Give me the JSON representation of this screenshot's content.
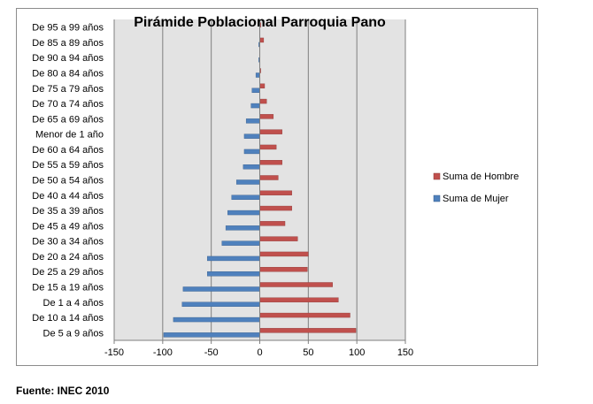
{
  "chart_data": {
    "type": "bar",
    "orientation": "horizontal",
    "title": "Pirámide Poblacional Parroquia Pano",
    "categories": [
      "De 95 a 99 años",
      "De 85 a 89 años",
      "De 90 a 94 años",
      "De 80 a 84 años",
      "De 75 a 79 años",
      "De 70 a 74 años",
      "De 65 a 69 años",
      "Menor de 1 año",
      "De 60 a 64 años",
      "De 55 a 59 años",
      "De 50 a 54 años",
      "De 40 a 44 años",
      "De 35 a 39 años",
      "De 45 a 49 años",
      "De 30 a 34 años",
      "De 20 a 24 años",
      "De 25 a 29 años",
      "De 15 a 19 años",
      "De 1 a 4 años",
      "De 10 a 14 años",
      "De 5 a 9 años"
    ],
    "series": [
      {
        "name": "Suma de Hombre",
        "color": "#c0504d",
        "values": [
          1,
          4,
          0,
          1,
          5,
          7,
          14,
          23,
          17,
          23,
          19,
          33,
          33,
          26,
          39,
          50,
          49,
          75,
          81,
          93,
          99
        ]
      },
      {
        "name": "Suma de Mujer",
        "color": "#4f81bd",
        "values": [
          0,
          -1,
          -1,
          -4,
          -8,
          -9,
          -14,
          -16,
          -16,
          -17,
          -24,
          -29,
          -33,
          -35,
          -39,
          -54,
          -54,
          -79,
          -80,
          -89,
          -99
        ]
      }
    ],
    "xlim": [
      -150,
      150
    ],
    "xticks": [
      "-150",
      "-100",
      "-50",
      "0",
      "50",
      "100",
      "150"
    ],
    "grid": "vertical",
    "legend_position": "right",
    "plot_background": "#e3e3e3",
    "gridline_color": "#7f7f7f"
  },
  "source_note": "Fuente: INEC 2010"
}
